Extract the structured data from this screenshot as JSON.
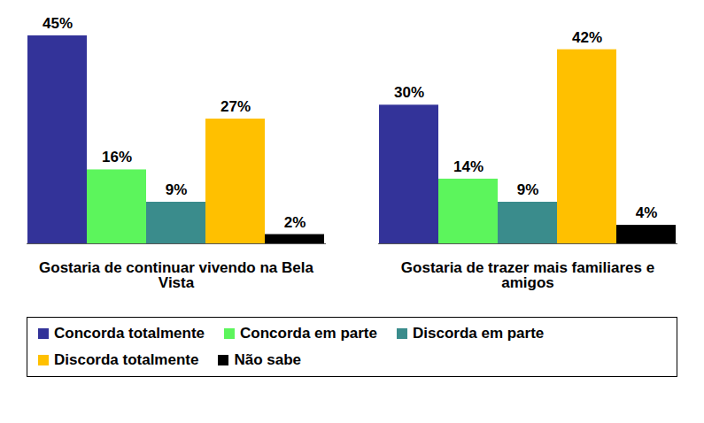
{
  "chart_data": {
    "type": "bar",
    "categories": [
      "Gostaria de continuar vivendo na Bela Vista",
      "Gostaria de trazer mais familiares e amigos"
    ],
    "series": [
      {
        "name": "Concorda totalmente",
        "color": "#333399",
        "values": [
          45,
          30
        ],
        "value_labels": [
          "45%",
          "30%"
        ]
      },
      {
        "name": "Concorda em parte",
        "color": "#5cf55c",
        "values": [
          16,
          14
        ],
        "value_labels": [
          "16%",
          "14%"
        ]
      },
      {
        "name": "Discorda em parte",
        "color": "#3a8c8c",
        "values": [
          9,
          9
        ],
        "value_labels": [
          "9%",
          "9%"
        ]
      },
      {
        "name": "Discorda totalmente",
        "color": "#ffc000",
        "values": [
          27,
          42
        ],
        "value_labels": [
          "27%",
          "42%"
        ]
      },
      {
        "name": "Não sabe",
        "color": "#000000",
        "values": [
          2,
          4
        ],
        "value_labels": [
          "2%",
          "4%"
        ]
      }
    ],
    "data_labels": true,
    "tick_labels": "x",
    "legend": "bottom"
  }
}
